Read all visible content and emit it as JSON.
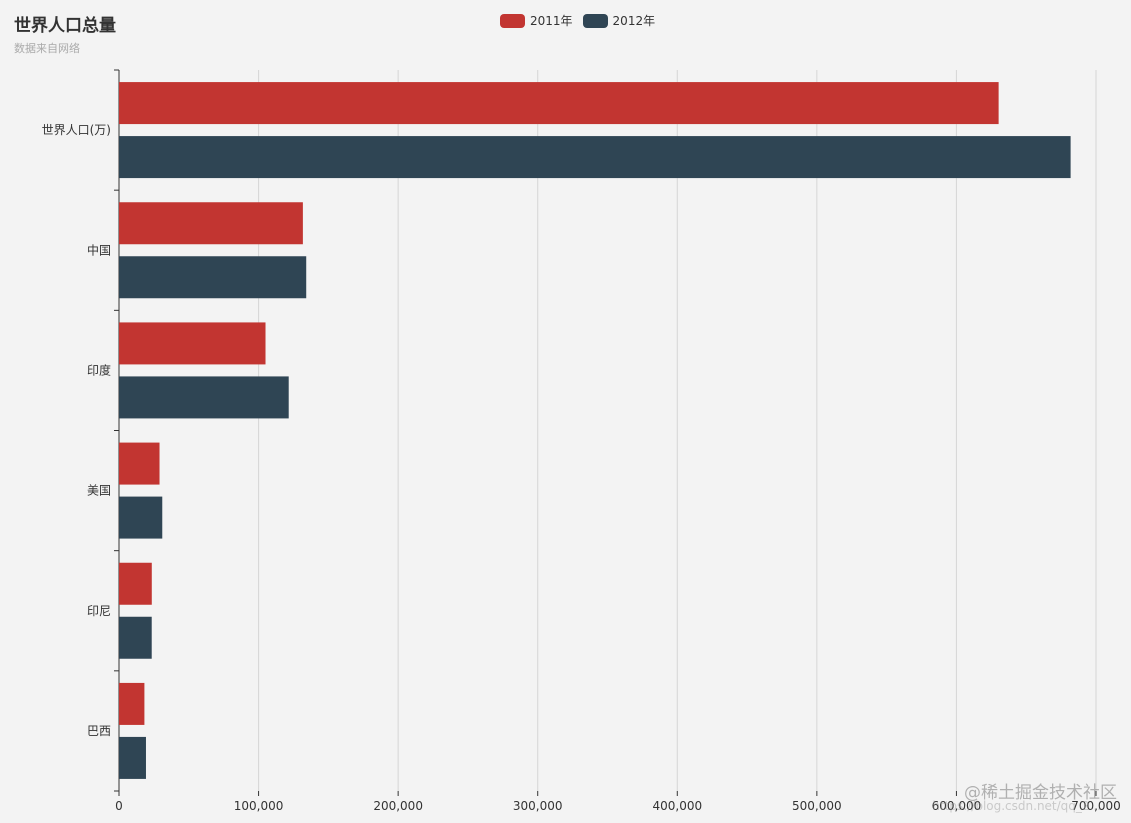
{
  "header": {
    "title": "世界人口总量",
    "subtitle": "数据来自网络"
  },
  "legend": {
    "items": [
      {
        "label": "2011年",
        "color": "#c23531"
      },
      {
        "label": "2012年",
        "color": "#2f4554"
      }
    ]
  },
  "watermark": {
    "text": "@稀土掘金技术社区",
    "url": "https://blog.csdn.net/qq_2..."
  },
  "chart_data": {
    "type": "bar",
    "orientation": "horizontal",
    "title": "世界人口总量",
    "subtitle": "数据来自网络",
    "categories": [
      "世界人口(万)",
      "中国",
      "印度",
      "美国",
      "印尼",
      "巴西"
    ],
    "series": [
      {
        "name": "2011年",
        "color": "#c23531",
        "values": [
          630230,
          131744,
          104970,
          29034,
          23489,
          18203
        ]
      },
      {
        "name": "2012年",
        "color": "#2f4554",
        "values": [
          681807,
          134141,
          121594,
          31000,
          23438,
          19325
        ]
      }
    ],
    "xlim": [
      0,
      700000
    ],
    "xticks": [
      "0",
      "100,000",
      "200,000",
      "300,000",
      "400,000",
      "500,000",
      "600,000",
      "700,000"
    ],
    "grid": true,
    "legend_position": "top-center"
  }
}
